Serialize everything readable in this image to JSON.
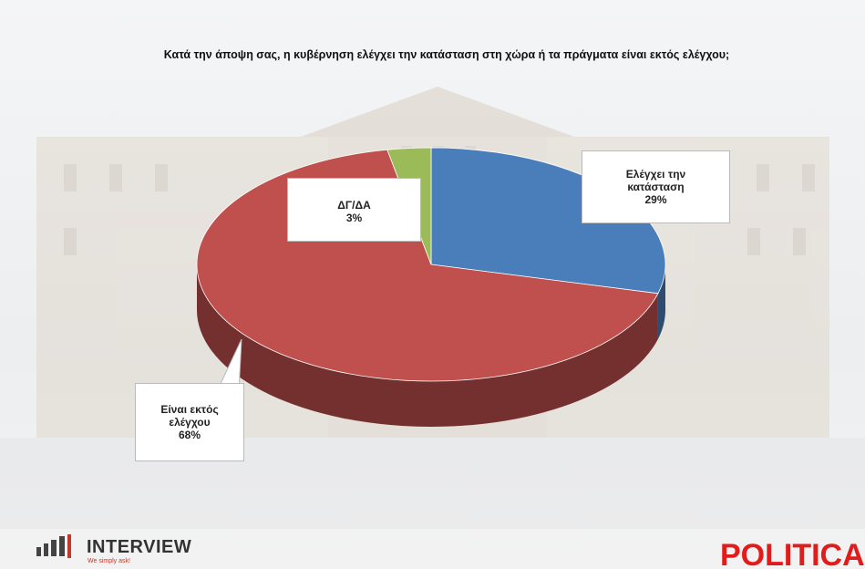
{
  "chart_data": {
    "type": "pie3d",
    "title": "Κατά την άποψη σας, η κυβέρνηση ελέγχει την κατάσταση στη χώρα ή τα πράγματα είναι εκτός ελέγχου;",
    "categories": [
      "Ελέγχει την κατάσταση",
      "Είναι εκτός ελέγχου",
      "ΔΓ/ΔΑ"
    ],
    "values": [
      29,
      68,
      3
    ],
    "value_labels": [
      "29%",
      "68%",
      "3%"
    ],
    "colors": [
      "#4a7ebb",
      "#c0504d",
      "#9bbb59"
    ]
  },
  "logos": {
    "left": "INTERVIEW",
    "tagline": "We simply ask!",
    "right": "POLITICAL"
  }
}
